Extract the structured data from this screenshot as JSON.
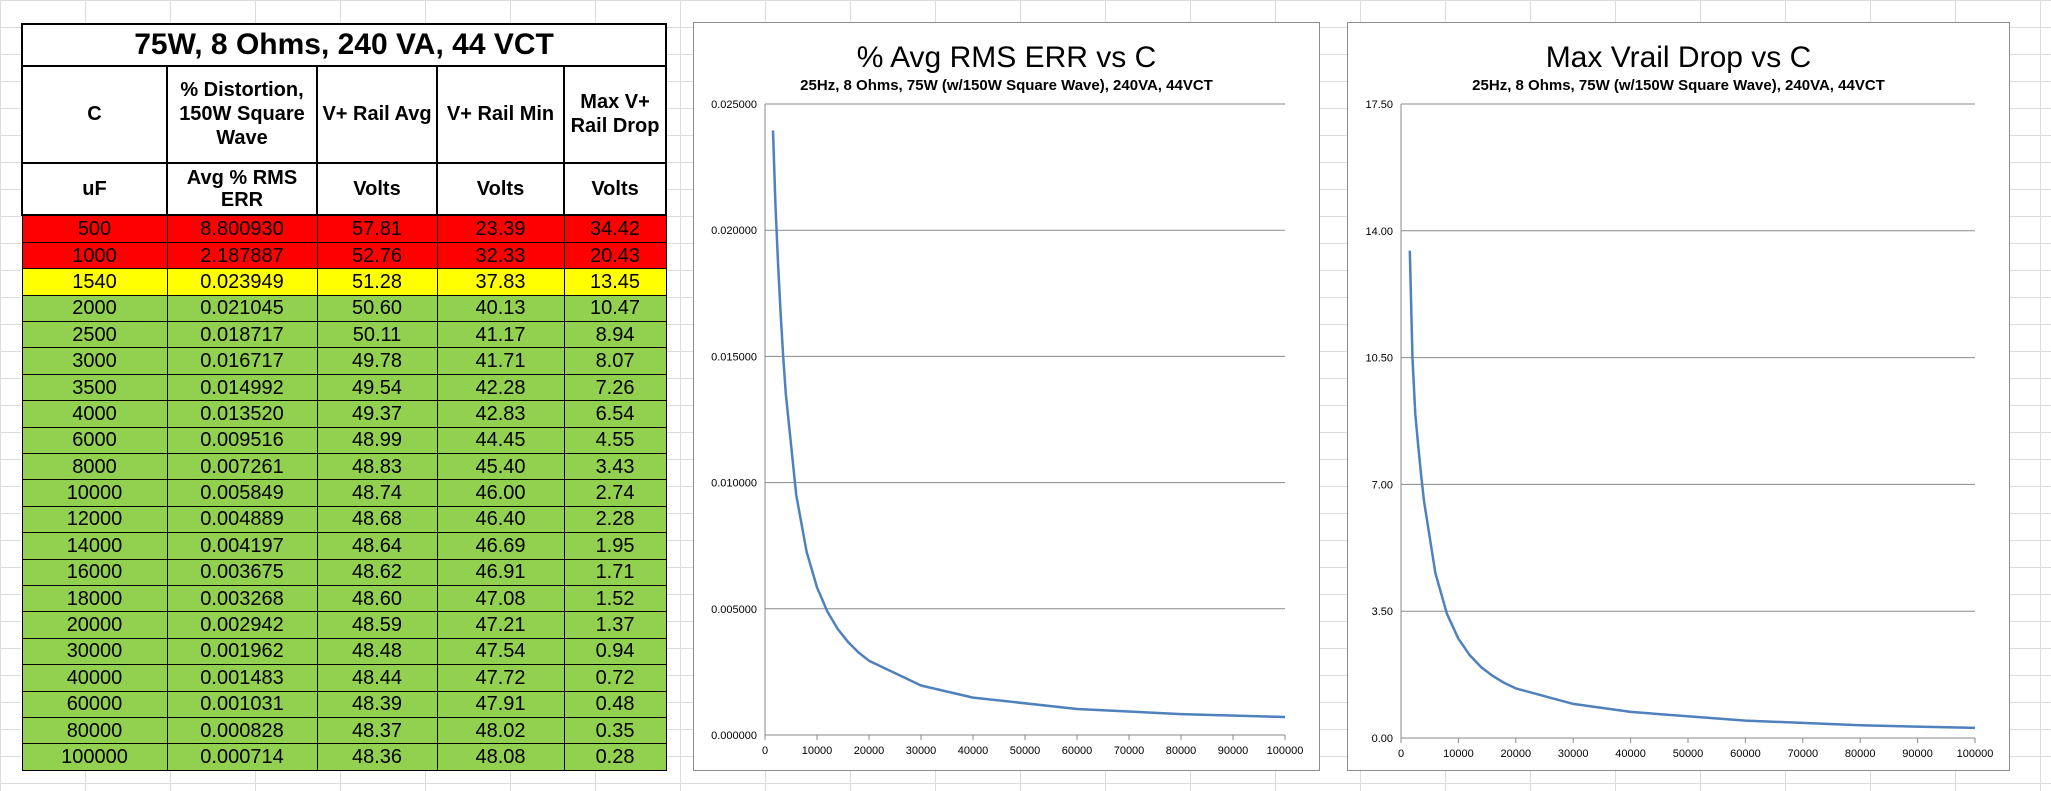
{
  "table": {
    "title": "75W, 8 Ohms, 240 VA, 44 VCT",
    "headers": [
      "C",
      "% Distortion, 150W Square Wave",
      "V+ Rail Avg",
      "V+ Rail Min",
      "Max V+ Rail Drop"
    ],
    "units": [
      "uF",
      "Avg % RMS ERR",
      "Volts",
      "Volts",
      "Volts"
    ],
    "row_colors": {
      "red": "#ff0000",
      "yellow": "#ffff00",
      "green": "#92d050"
    },
    "rows": [
      {
        "status": "red",
        "cells": [
          "500",
          "8.800930",
          "57.81",
          "23.39",
          "34.42"
        ]
      },
      {
        "status": "red",
        "cells": [
          "1000",
          "2.187887",
          "52.76",
          "32.33",
          "20.43"
        ]
      },
      {
        "status": "yellow",
        "cells": [
          "1540",
          "0.023949",
          "51.28",
          "37.83",
          "13.45"
        ]
      },
      {
        "status": "green",
        "cells": [
          "2000",
          "0.021045",
          "50.60",
          "40.13",
          "10.47"
        ]
      },
      {
        "status": "green",
        "cells": [
          "2500",
          "0.018717",
          "50.11",
          "41.17",
          "8.94"
        ]
      },
      {
        "status": "green",
        "cells": [
          "3000",
          "0.016717",
          "49.78",
          "41.71",
          "8.07"
        ]
      },
      {
        "status": "green",
        "cells": [
          "3500",
          "0.014992",
          "49.54",
          "42.28",
          "7.26"
        ]
      },
      {
        "status": "green",
        "cells": [
          "4000",
          "0.013520",
          "49.37",
          "42.83",
          "6.54"
        ]
      },
      {
        "status": "green",
        "cells": [
          "6000",
          "0.009516",
          "48.99",
          "44.45",
          "4.55"
        ]
      },
      {
        "status": "green",
        "cells": [
          "8000",
          "0.007261",
          "48.83",
          "45.40",
          "3.43"
        ]
      },
      {
        "status": "green",
        "cells": [
          "10000",
          "0.005849",
          "48.74",
          "46.00",
          "2.74"
        ]
      },
      {
        "status": "green",
        "cells": [
          "12000",
          "0.004889",
          "48.68",
          "46.40",
          "2.28"
        ]
      },
      {
        "status": "green",
        "cells": [
          "14000",
          "0.004197",
          "48.64",
          "46.69",
          "1.95"
        ]
      },
      {
        "status": "green",
        "cells": [
          "16000",
          "0.003675",
          "48.62",
          "46.91",
          "1.71"
        ]
      },
      {
        "status": "green",
        "cells": [
          "18000",
          "0.003268",
          "48.60",
          "47.08",
          "1.52"
        ]
      },
      {
        "status": "green",
        "cells": [
          "20000",
          "0.002942",
          "48.59",
          "47.21",
          "1.37"
        ]
      },
      {
        "status": "green",
        "cells": [
          "30000",
          "0.001962",
          "48.48",
          "47.54",
          "0.94"
        ]
      },
      {
        "status": "green",
        "cells": [
          "40000",
          "0.001483",
          "48.44",
          "47.72",
          "0.72"
        ]
      },
      {
        "status": "green",
        "cells": [
          "60000",
          "0.001031",
          "48.39",
          "47.91",
          "0.48"
        ]
      },
      {
        "status": "green",
        "cells": [
          "80000",
          "0.000828",
          "48.37",
          "48.02",
          "0.35"
        ]
      },
      {
        "status": "green",
        "cells": [
          "100000",
          "0.000714",
          "48.36",
          "48.08",
          "0.28"
        ]
      }
    ]
  },
  "chart_data": [
    {
      "type": "line",
      "title": "% Avg RMS ERR vs C",
      "subtitle": "25Hz,  8 Ohms,  75W (w/150W Square Wave),  240VA, 44VCT",
      "xlabel": "",
      "ylabel": "",
      "xlim": [
        0,
        100000
      ],
      "ylim": [
        0,
        0.025
      ],
      "x_ticks": [
        "0",
        "10000",
        "20000",
        "30000",
        "40000",
        "50000",
        "60000",
        "70000",
        "80000",
        "90000",
        "100000"
      ],
      "y_ticks": [
        "0.000000",
        "0.005000",
        "0.010000",
        "0.015000",
        "0.020000",
        "0.025000"
      ],
      "grid": "horizontal",
      "line_color": "#4f81bd",
      "x": [
        1540,
        2000,
        2500,
        3000,
        3500,
        4000,
        6000,
        8000,
        10000,
        12000,
        14000,
        16000,
        18000,
        20000,
        30000,
        40000,
        60000,
        80000,
        100000
      ],
      "y": [
        0.023949,
        0.021045,
        0.018717,
        0.016717,
        0.014992,
        0.01352,
        0.009516,
        0.007261,
        0.005849,
        0.004889,
        0.004197,
        0.003675,
        0.003268,
        0.002942,
        0.001962,
        0.001483,
        0.001031,
        0.000828,
        0.000714
      ]
    },
    {
      "type": "line",
      "title": "Max Vrail Drop vs C",
      "subtitle": "25Hz,  8 Ohms,  75W (w/150W Square Wave),  240VA, 44VCT",
      "xlabel": "",
      "ylabel": "",
      "xlim": [
        0,
        100000
      ],
      "ylim": [
        0,
        17.5
      ],
      "x_ticks": [
        "0",
        "10000",
        "20000",
        "30000",
        "40000",
        "50000",
        "60000",
        "70000",
        "80000",
        "90000",
        "100000"
      ],
      "y_ticks": [
        "0.00",
        "3.50",
        "7.00",
        "10.50",
        "14.00",
        "17.50"
      ],
      "grid": "horizontal",
      "line_color": "#4f81bd",
      "x": [
        1540,
        2000,
        2500,
        3000,
        3500,
        4000,
        6000,
        8000,
        10000,
        12000,
        14000,
        16000,
        18000,
        20000,
        30000,
        40000,
        60000,
        80000,
        100000
      ],
      "y": [
        13.45,
        10.47,
        8.94,
        8.07,
        7.26,
        6.54,
        4.55,
        3.43,
        2.74,
        2.28,
        1.95,
        1.71,
        1.52,
        1.37,
        0.94,
        0.72,
        0.48,
        0.35,
        0.28
      ]
    }
  ]
}
